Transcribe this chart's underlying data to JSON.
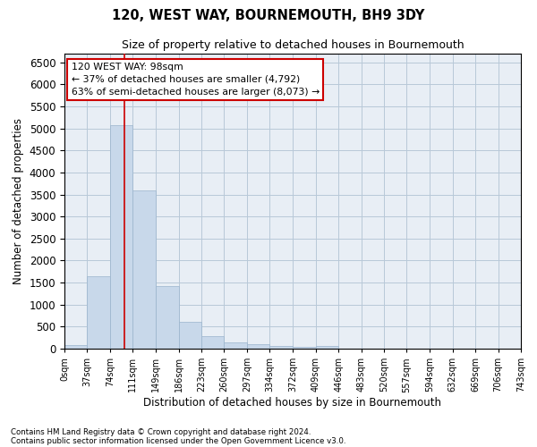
{
  "title": "120, WEST WAY, BOURNEMOUTH, BH9 3DY",
  "subtitle": "Size of property relative to detached houses in Bournemouth",
  "xlabel": "Distribution of detached houses by size in Bournemouth",
  "ylabel": "Number of detached properties",
  "bar_color": "#c8d8ea",
  "bar_edge_color": "#9ab4cc",
  "background_color": "#ffffff",
  "axes_bg_color": "#e8eef5",
  "grid_color": "#b8c8d8",
  "annotation_line1": "120 WEST WAY: 98sqm",
  "annotation_line2": "← 37% of detached houses are smaller (4,792)",
  "annotation_line3": "63% of semi-detached houses are larger (8,073) →",
  "annotation_box_color": "#ffffff",
  "annotation_border_color": "#cc0000",
  "marker_line_color": "#cc0000",
  "marker_value": 98,
  "bin_edges": [
    0,
    37,
    74,
    111,
    149,
    186,
    223,
    260,
    297,
    334,
    372,
    409,
    446,
    483,
    520,
    557,
    594,
    632,
    669,
    706,
    743
  ],
  "bin_labels": [
    "0sqm",
    "37sqm",
    "74sqm",
    "111sqm",
    "149sqm",
    "186sqm",
    "223sqm",
    "260sqm",
    "297sqm",
    "334sqm",
    "372sqm",
    "409sqm",
    "446sqm",
    "483sqm",
    "520sqm",
    "557sqm",
    "594sqm",
    "632sqm",
    "669sqm",
    "706sqm",
    "743sqm"
  ],
  "bar_heights": [
    75,
    1650,
    5080,
    3600,
    1420,
    615,
    290,
    140,
    105,
    65,
    50,
    65,
    0,
    0,
    0,
    0,
    0,
    0,
    0,
    0
  ],
  "ylim": [
    0,
    6700
  ],
  "yticks": [
    0,
    500,
    1000,
    1500,
    2000,
    2500,
    3000,
    3500,
    4000,
    4500,
    5000,
    5500,
    6000,
    6500
  ],
  "footer_line1": "Contains HM Land Registry data © Crown copyright and database right 2024.",
  "footer_line2": "Contains public sector information licensed under the Open Government Licence v3.0."
}
